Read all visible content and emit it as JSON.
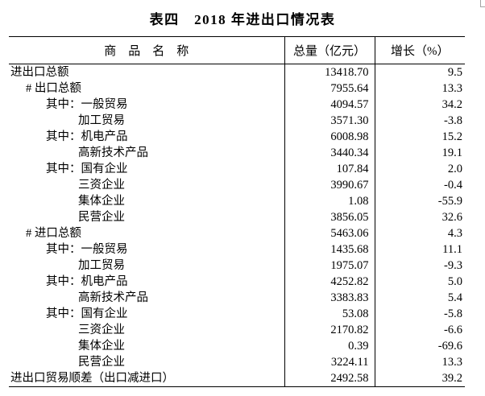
{
  "page": {
    "title": "表四　2018 年进出口情况表",
    "background_color": "#ffffff",
    "text_color": "#000000",
    "border_color": "#000000",
    "corner_mark_color": "#a3a3a3"
  },
  "table": {
    "columns": [
      {
        "label": "商　品　名　称"
      },
      {
        "label": "总量（亿元）"
      },
      {
        "label": "增长（%）"
      }
    ],
    "rows": [
      {
        "label": "进出口总额",
        "indent": 0,
        "total": "13418.70",
        "growth": "9.5"
      },
      {
        "label": "# 出口总额",
        "indent": 1,
        "total": "7955.64",
        "growth": "13.3"
      },
      {
        "label": "其中：一般贸易",
        "indent": 2,
        "total": "4094.57",
        "growth": "34.2"
      },
      {
        "label": "加工贸易",
        "indent": 3,
        "total": "3571.30",
        "growth": "-3.8"
      },
      {
        "label": "其中：机电产品",
        "indent": 2,
        "total": "6008.98",
        "growth": "15.2"
      },
      {
        "label": "高新技术产品",
        "indent": 3,
        "total": "3440.34",
        "growth": "19.1"
      },
      {
        "label": "其中：国有企业",
        "indent": 2,
        "total": "107.84",
        "growth": "2.0"
      },
      {
        "label": "三资企业",
        "indent": 3,
        "total": "3990.67",
        "growth": "-0.4"
      },
      {
        "label": "集体企业",
        "indent": 3,
        "total": "1.08",
        "growth": "-55.9"
      },
      {
        "label": "民营企业",
        "indent": 3,
        "total": "3856.05",
        "growth": "32.6"
      },
      {
        "label": "# 进口总额",
        "indent": 1,
        "total": "5463.06",
        "growth": "4.3"
      },
      {
        "label": "其中：一般贸易",
        "indent": 2,
        "total": "1435.68",
        "growth": "11.1"
      },
      {
        "label": "加工贸易",
        "indent": 3,
        "total": "1975.07",
        "growth": "-9.3"
      },
      {
        "label": "其中：机电产品",
        "indent": 2,
        "total": "4252.82",
        "growth": "5.0"
      },
      {
        "label": "高新技术产品",
        "indent": 3,
        "total": "3383.83",
        "growth": "5.4"
      },
      {
        "label": "其中：国有企业",
        "indent": 2,
        "total": "53.08",
        "growth": "-5.8"
      },
      {
        "label": "三资企业",
        "indent": 3,
        "total": "2170.82",
        "growth": "-6.6"
      },
      {
        "label": "集体企业",
        "indent": 3,
        "total": "0.39",
        "growth": "-69.6"
      },
      {
        "label": "民营企业",
        "indent": 3,
        "total": "3224.11",
        "growth": "13.3"
      },
      {
        "label": "进出口贸易顺差（出口减进口）",
        "indent": 0,
        "total": "2492.58",
        "growth": "39.2"
      }
    ]
  }
}
